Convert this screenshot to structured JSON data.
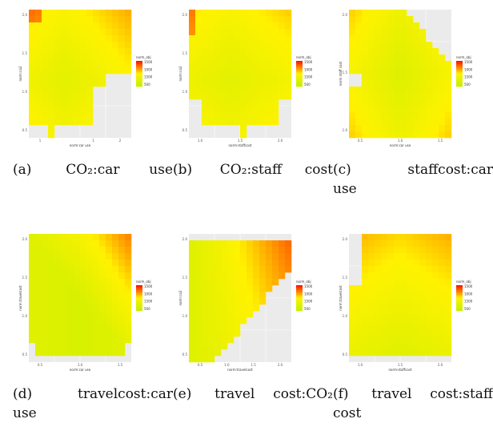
{
  "chart_data": [
    {
      "type": "heatmap",
      "caption_label": "(a)",
      "caption_text": "CO₂:car use",
      "caption_line2": "",
      "xlabel": "norm:car use",
      "ylabel": "norm:co2",
      "xticks": [
        "1",
        "",
        "1",
        "2"
      ],
      "yticks": [
        "2.0",
        "1.5",
        "1.0",
        "0.5"
      ],
      "legend_title": "norm_obj",
      "legend_ticks": [
        "1500",
        "1000",
        "1500",
        "500"
      ],
      "shape": "a"
    },
    {
      "type": "heatmap",
      "caption_label": "(b)",
      "caption_text": "CO₂:staff cost",
      "caption_line2": "",
      "xlabel": "norm:staffcost",
      "ylabel": "norm:co2",
      "xticks": [
        "1.0",
        "1.5",
        "2.0"
      ],
      "yticks": [
        "2.0",
        "1.5",
        "1.0",
        "0.5"
      ],
      "legend_title": "norm_obj",
      "legend_ticks": [
        "1500",
        "1000",
        "1500",
        "500"
      ],
      "shape": "b"
    },
    {
      "type": "heatmap",
      "caption_label": "(c)",
      "caption_text": "staffcost:car",
      "caption_line2": "use",
      "xlabel": "norm:car use",
      "ylabel": "norm:staff cost",
      "xticks": [
        "0.5",
        "1.0",
        "1.5"
      ],
      "yticks": [
        "2.0",
        "1.5",
        "1.0"
      ],
      "legend_title": "norm_obj",
      "legend_ticks": [
        "1500",
        "1000",
        "1500",
        "500"
      ],
      "shape": "c"
    },
    {
      "type": "heatmap",
      "caption_label": "(d)",
      "caption_text": "travelcost:car",
      "caption_line2": "use",
      "xlabel": "norm:car use",
      "ylabel": "norm:travelcost",
      "xticks": [
        "0.5",
        "1.0",
        "1.5"
      ],
      "yticks": [
        "2.0",
        "1.5",
        "1.0",
        "0.5"
      ],
      "legend_title": "norm_obj",
      "legend_ticks": [
        "1500",
        "1000",
        "1500",
        "500"
      ],
      "shape": "d"
    },
    {
      "type": "heatmap",
      "caption_label": "(e)",
      "caption_text": "travel cost:CO₂",
      "caption_line2": "",
      "xlabel": "norm:travelcost",
      "ylabel": "norm:co2",
      "xticks": [
        "0.5",
        "1.0",
        "1.5",
        "2.0"
      ],
      "yticks": [
        "2.0",
        "1.5",
        "1.0",
        "0.5"
      ],
      "legend_title": "norm_obj",
      "legend_ticks": [
        "1500",
        "1000",
        "1500",
        "500"
      ],
      "shape": "e"
    },
    {
      "type": "heatmap",
      "caption_label": "(f)",
      "caption_text": "travel cost:staff",
      "caption_line2": "cost",
      "xlabel": "norm:staffcost",
      "ylabel": "norm:travelcost",
      "xticks": [
        "1.0",
        "1.5",
        "2.0"
      ],
      "yticks": [
        "2.0",
        "1.5",
        "1.0",
        "0.5"
      ],
      "legend_title": "norm_obj",
      "legend_ticks": [
        "1500",
        "1000",
        "1500",
        "500"
      ],
      "shape": "f"
    }
  ],
  "colors": {
    "panel_bg": "#ebebeb",
    "grid": "#ffffff",
    "low": "#c6f000",
    "mid": "#fff200",
    "high": "#ff1a00"
  }
}
